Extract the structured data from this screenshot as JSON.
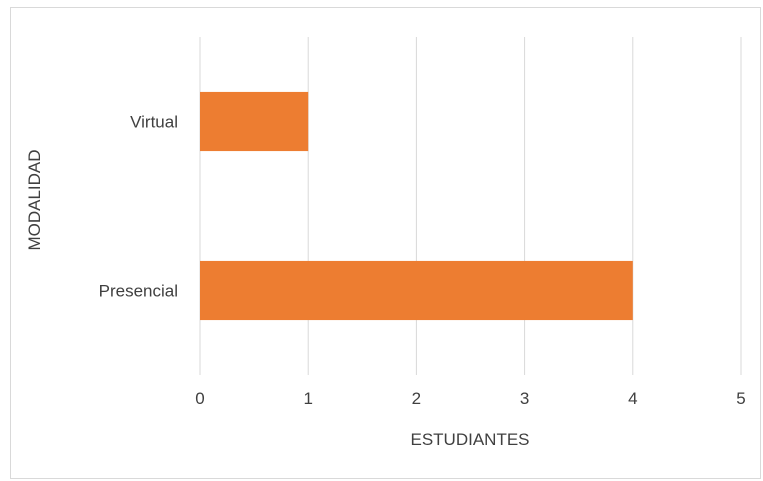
{
  "chart_data": {
    "type": "bar",
    "orientation": "horizontal",
    "categories": [
      "Virtual",
      "Presencial"
    ],
    "values": [
      1,
      4
    ],
    "xlabel": "ESTUDIANTES",
    "ylabel": "MODALIDAD",
    "xlim": [
      0,
      5
    ],
    "xticks": [
      "0",
      "1",
      "2",
      "3",
      "4",
      "5"
    ],
    "grid": "vertical",
    "legend": "none",
    "bar_color": "#ED7D31",
    "grid_color": "#d9d9d9"
  }
}
